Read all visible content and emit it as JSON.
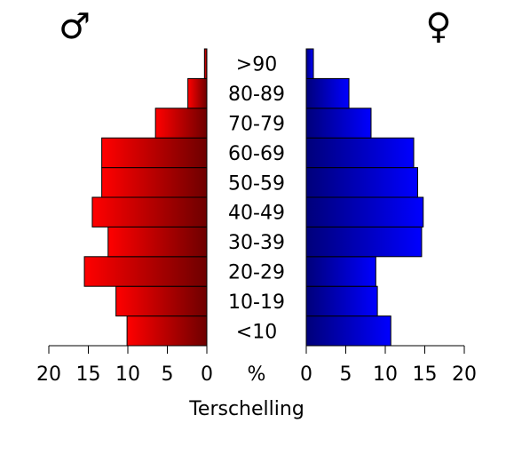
{
  "chart_data": {
    "type": "bar",
    "orientation": "horizontal-pyramid",
    "title": "Terschelling",
    "center_axis_label": "%",
    "categories": [
      "<10",
      "10-19",
      "20-29",
      "30-39",
      "40-49",
      "50-59",
      "60-69",
      "70-79",
      "80-89",
      ">90"
    ],
    "series": [
      {
        "name": "♂",
        "side": "left",
        "values": [
          10.1,
          11.5,
          15.5,
          12.5,
          14.5,
          13.3,
          13.3,
          6.5,
          2.4,
          0.3
        ]
      },
      {
        "name": "♀",
        "side": "right",
        "values": [
          10.7,
          9.0,
          8.8,
          14.6,
          14.8,
          14.1,
          13.6,
          8.2,
          5.4,
          0.9
        ]
      }
    ],
    "xlim": [
      0,
      20
    ],
    "left_ticks": [
      "20",
      "15",
      "10",
      "5",
      "0"
    ],
    "right_ticks": [
      "0",
      "5",
      "10",
      "15",
      "20"
    ],
    "grid": false,
    "colors": {
      "male_light": "#ff0000",
      "male_dark": "#6e0000",
      "female_light": "#0000ff",
      "female_dark": "#00007a",
      "bar_border": "#000000"
    }
  }
}
